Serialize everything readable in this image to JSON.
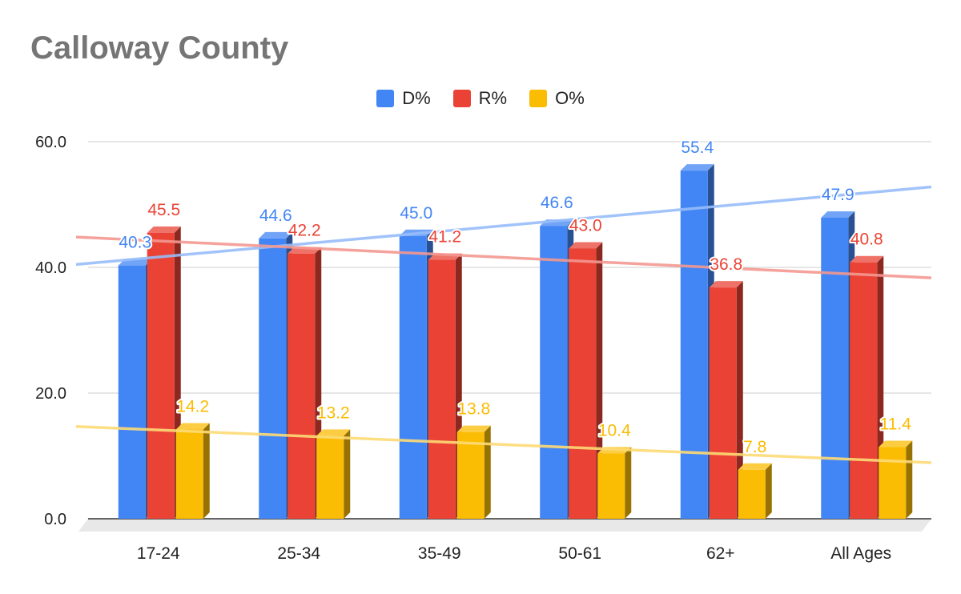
{
  "chart_data": {
    "type": "bar",
    "title": "Calloway County",
    "categories": [
      "17-24",
      "25-34",
      "35-49",
      "50-61",
      "62+",
      "All Ages"
    ],
    "series": [
      {
        "name": "D%",
        "color": "#4285f4",
        "values": [
          40.3,
          44.6,
          45.0,
          46.6,
          55.4,
          47.9
        ]
      },
      {
        "name": "R%",
        "color": "#ea4335",
        "values": [
          45.5,
          42.2,
          41.2,
          43.0,
          36.8,
          40.8
        ]
      },
      {
        "name": "O%",
        "color": "#fbbc04",
        "values": [
          14.2,
          13.2,
          13.8,
          10.4,
          7.8,
          11.4
        ]
      }
    ],
    "yticks": [
      "0.0",
      "20.0",
      "40.0",
      "60.0"
    ],
    "ylim": [
      0,
      60
    ],
    "grid": true,
    "legend_position": "top",
    "trendlines": true,
    "xlabel": "",
    "ylabel": ""
  }
}
